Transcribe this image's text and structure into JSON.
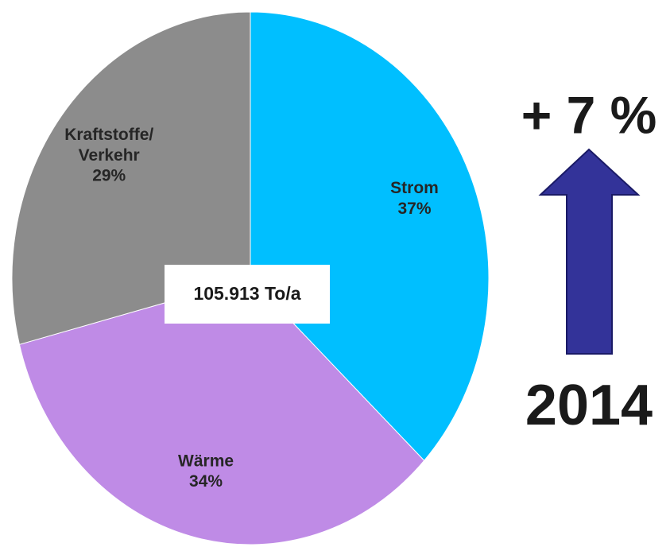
{
  "chart_data": {
    "type": "pie",
    "categories": [
      "Strom",
      "Wärme",
      "Kraftstoffe/Verkehr"
    ],
    "values": [
      37,
      34,
      29
    ],
    "value_labels": [
      "37%",
      "34%",
      "29%"
    ],
    "colors": [
      "#00bfff",
      "#bf8be6",
      "#8c8c8c"
    ],
    "center_label": "105.913 To/a",
    "change_label": "+ 7 %",
    "year_label": "2014"
  }
}
